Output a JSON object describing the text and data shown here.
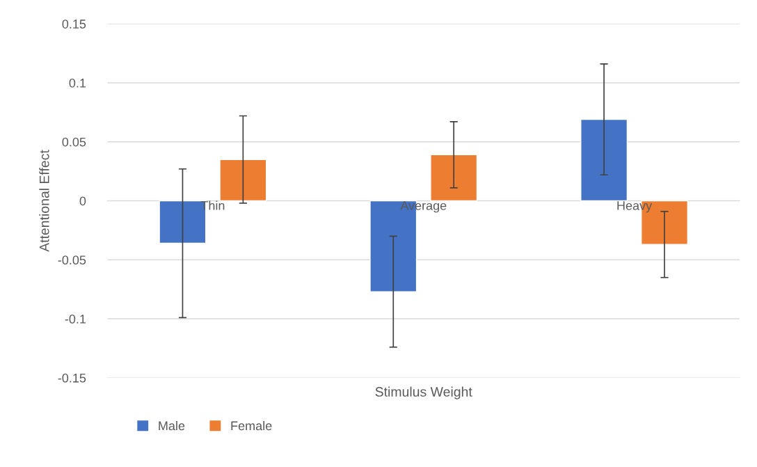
{
  "chart_data": {
    "type": "bar",
    "xlabel": "Stimulus Weight",
    "ylabel": "Attentional Effect",
    "categories": [
      "Thin",
      "Average",
      "Heavy"
    ],
    "series": [
      {
        "name": "Male",
        "color": "#4472c4",
        "values": [
          -0.036,
          -0.077,
          0.069
        ],
        "errors": [
          0.063,
          0.047,
          0.047
        ]
      },
      {
        "name": "Female",
        "color": "#ed7d31",
        "values": [
          0.035,
          0.039,
          -0.037
        ],
        "errors": [
          0.037,
          0.028,
          0.028
        ]
      }
    ],
    "ylim": [
      -0.15,
      0.15
    ],
    "yticks": [
      -0.15,
      -0.1,
      -0.05,
      0,
      0.05,
      0.1,
      0.15
    ],
    "grid": "y",
    "legend": "bottom left"
  }
}
